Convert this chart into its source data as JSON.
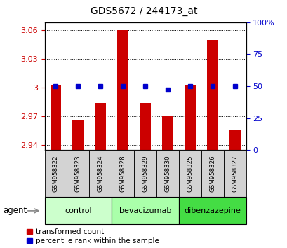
{
  "title": "GDS5672 / 244173_at",
  "samples": [
    "GSM958322",
    "GSM958323",
    "GSM958324",
    "GSM958328",
    "GSM958329",
    "GSM958330",
    "GSM958325",
    "GSM958326",
    "GSM958327"
  ],
  "transformed_counts": [
    3.002,
    2.966,
    2.984,
    3.06,
    2.984,
    2.97,
    3.002,
    3.05,
    2.956
  ],
  "percentile_ranks": [
    50,
    50,
    50,
    50,
    50,
    47,
    50,
    50,
    50
  ],
  "groups": [
    {
      "label": "control",
      "indices": [
        0,
        1,
        2
      ],
      "color": "#ccffcc"
    },
    {
      "label": "bevacizumab",
      "indices": [
        3,
        4,
        5
      ],
      "color": "#aaffaa"
    },
    {
      "label": "dibenzazepine",
      "indices": [
        6,
        7,
        8
      ],
      "color": "#44dd44"
    }
  ],
  "ylim_left": [
    2.935,
    3.068
  ],
  "ylim_right": [
    0,
    100
  ],
  "yticks_left": [
    2.94,
    2.97,
    3.0,
    3.03,
    3.06
  ],
  "yticks_left_labels": [
    "2.94",
    "2.97",
    "3",
    "3.03",
    "3.06"
  ],
  "yticks_right": [
    0,
    25,
    50,
    75,
    100
  ],
  "yticks_right_labels": [
    "0",
    "25",
    "50",
    "75",
    "100%"
  ],
  "bar_color": "#cc0000",
  "dot_color": "#0000cc",
  "background_color": "#ffffff",
  "tick_label_color_left": "#cc0000",
  "tick_label_color_right": "#0000cc",
  "agent_label": "agent",
  "legend_tc": "transformed count",
  "legend_pr": "percentile rank within the sample",
  "bar_width": 0.5,
  "dot_size": 5
}
